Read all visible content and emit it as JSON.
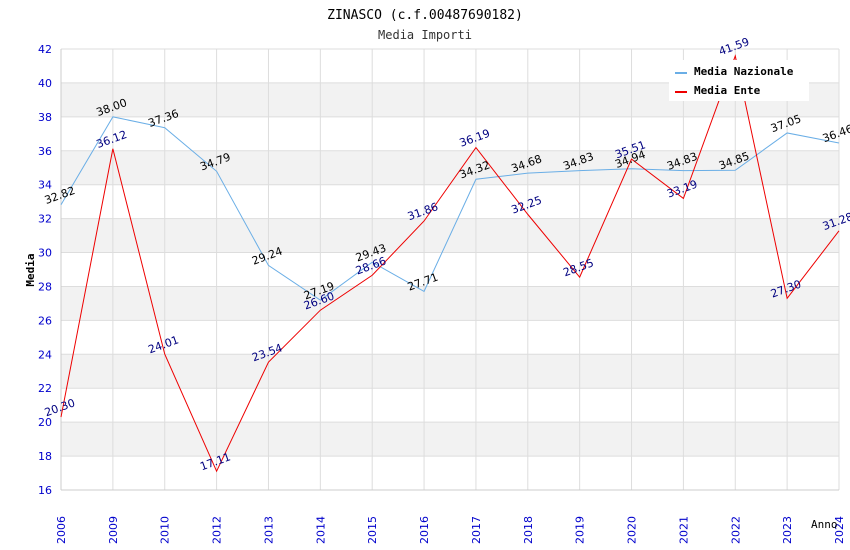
{
  "chart_data": {
    "type": "line",
    "title": "ZINASCO (c.f.00487690182)",
    "subtitle": "Media Importi",
    "xlabel": "Anno",
    "ylabel": "Media",
    "ylim": [
      16,
      42
    ],
    "yticks": [
      16,
      18,
      20,
      22,
      24,
      26,
      28,
      30,
      32,
      34,
      36,
      38,
      40,
      42
    ],
    "categories": [
      "2006",
      "2009",
      "2010",
      "2012",
      "2013",
      "2014",
      "2015",
      "2016",
      "2017",
      "2018",
      "2019",
      "2020",
      "2021",
      "2022",
      "2023",
      "2024"
    ],
    "series": [
      {
        "name": "Media Nazionale",
        "color": "#6aaee6",
        "label_color": "#000000",
        "values": [
          32.82,
          38.0,
          37.36,
          34.79,
          29.24,
          27.19,
          29.43,
          27.71,
          34.32,
          34.68,
          34.83,
          34.94,
          34.83,
          34.85,
          37.05,
          36.46
        ],
        "labels": [
          "32.82",
          "38.00",
          "37.36",
          "34.79",
          "29.24",
          "27.19",
          "29.43",
          "27.71",
          "34.32",
          "34.68",
          "34.83",
          "34.94",
          "34.83",
          "34.85",
          "37.05",
          "36.46"
        ]
      },
      {
        "name": "Media Ente",
        "color": "#ee0000",
        "label_color": "#000080",
        "values": [
          20.3,
          36.12,
          24.01,
          17.11,
          23.54,
          26.6,
          28.66,
          31.86,
          36.19,
          32.25,
          28.55,
          35.51,
          33.19,
          41.59,
          27.3,
          31.28
        ],
        "labels": [
          "20.30",
          "36.12",
          "24.01",
          "17.11",
          "23.54",
          "26.60",
          "28.66",
          "31.86",
          "36.19",
          "32.25",
          "28.55",
          "35.51",
          "33.19",
          "41.59",
          "27.30",
          "31.28"
        ]
      }
    ],
    "legend_position": "top-right",
    "grid": true
  },
  "colors": {
    "axis_text": "#0000cc",
    "band": "#f2f2f2",
    "grid": "#dddddd"
  }
}
